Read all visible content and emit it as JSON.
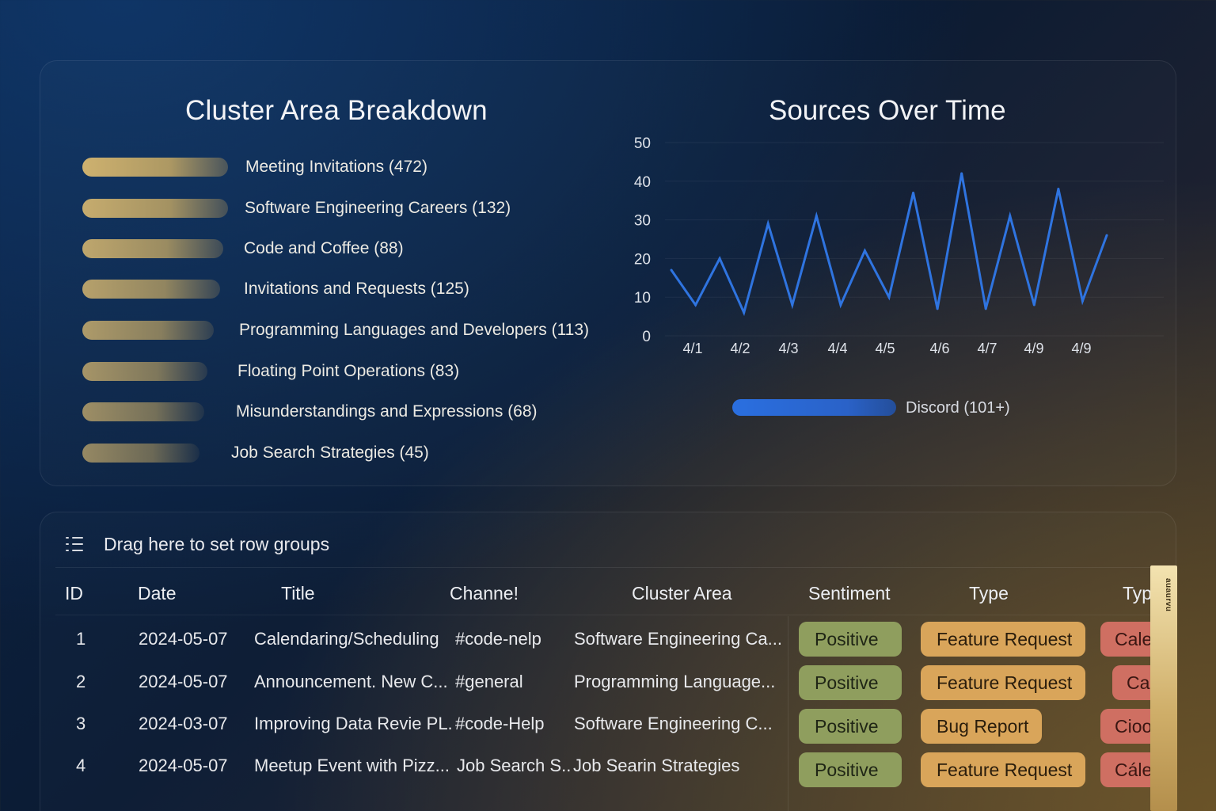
{
  "cluster_breakdown": {
    "title": "Cluster Area Breakdown",
    "items": [
      {
        "label": "Meeting Invitations (472)",
        "count": 472
      },
      {
        "label": "Software Engineering Careers (132)",
        "count": 132
      },
      {
        "label": "Code and Coffee (88)",
        "count": 88
      },
      {
        "label": "Invitations and Requests (125)",
        "count": 125
      },
      {
        "label": "Programming Languages and Developers (113)",
        "count": 113
      },
      {
        "label": "Floating Point Operations (83)",
        "count": 83
      },
      {
        "label": "Misunderstandings and Expressions (68)",
        "count": 68
      },
      {
        "label": "Job Search Strategies (45)",
        "count": 45
      }
    ],
    "bar_color": "#d8b870"
  },
  "chart_data": {
    "type": "line",
    "title": "Sources Over Time",
    "y_ticks": [
      "0",
      "10",
      "20",
      "30",
      "40",
      "50"
    ],
    "ylim": [
      0,
      50
    ],
    "x_tick_labels": [
      "4/1",
      "4/2",
      "4/3",
      "4/4",
      "4/5",
      "4/6",
      "4/7",
      "4/9",
      "4/9"
    ],
    "series": [
      {
        "name": "Discord (101+)",
        "color": "#2f74e0",
        "values": [
          17,
          8,
          20,
          6,
          29,
          8,
          31,
          8,
          22,
          10,
          37,
          7,
          42,
          7,
          31,
          8,
          38,
          9,
          26
        ]
      }
    ],
    "grid": true,
    "legend_position": "bottom"
  },
  "table": {
    "group_placeholder": "Drag here to set row groups",
    "headers": [
      "ID",
      "Date",
      "Title",
      "Channe!",
      "Cluster Area",
      "Sentiment",
      "Type",
      "Typ"
    ],
    "rows": [
      {
        "id": "1",
        "date": "2024-05-07",
        "title": "Calendaring/Scheduling",
        "channel": "#code-nelp",
        "cluster": "Software Engineering Ca...",
        "sentiment": "Positive",
        "type": "Feature Request",
        "type2": "Cale"
      },
      {
        "id": "2",
        "date": "2024-05-07",
        "title": "Announcement. New C...",
        "channel": "#general",
        "cluster": "Programming Language...",
        "sentiment": "Positive",
        "type": "Feature Request",
        "type2": "Ca"
      },
      {
        "id": "3",
        "date": "2024-03-07",
        "title": "Improving Data Revie PL.",
        "channel": "#code-Help",
        "cluster": "Software Engineering C...",
        "sentiment": "Positive",
        "type": "Bug Report",
        "type2": "Cioo"
      },
      {
        "id": "4",
        "date": "2024-05-07",
        "title": "Meetup Event with Pizz...",
        "channel": "Job Search S..",
        "cluster": "Job Searin Strategies",
        "sentiment": "Positive",
        "type": "Feature Request",
        "type2": "Cále"
      }
    ],
    "scroll_tab_text": "auaurvu"
  }
}
